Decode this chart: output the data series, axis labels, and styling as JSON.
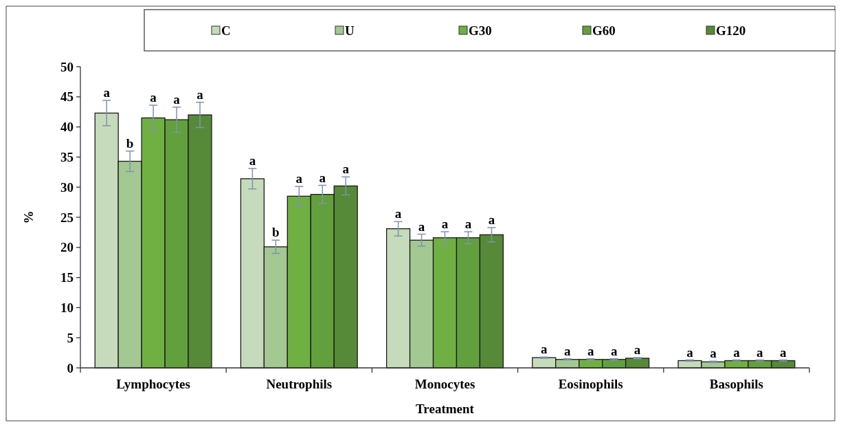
{
  "chart_data": {
    "type": "bar",
    "xlabel": "Treatment",
    "ylabel": "%",
    "categories": [
      "Lymphocytes",
      "Neutrophils",
      "Monocytes",
      "Eosinophils",
      "Basophils"
    ],
    "ylim": [
      0,
      50
    ],
    "yticks": [
      0,
      5,
      10,
      15,
      20,
      25,
      30,
      35,
      40,
      45,
      50
    ],
    "grid": false,
    "legend": "top",
    "series": [
      {
        "name": "C",
        "color": "#c6dbbb",
        "values": [
          42.3,
          31.4,
          23.1,
          1.7,
          1.2
        ],
        "errors": [
          2.1,
          1.7,
          1.2,
          0.1,
          0.1
        ],
        "value_labels": [
          "a",
          "a",
          "a",
          "a",
          "a"
        ]
      },
      {
        "name": "U",
        "color": "#a3c891",
        "values": [
          34.3,
          20.1,
          21.2,
          1.4,
          1.0
        ],
        "errors": [
          1.7,
          1.1,
          1.0,
          0.1,
          0.1
        ],
        "value_labels": [
          "b",
          "b",
          "a",
          "a",
          "a"
        ]
      },
      {
        "name": "G30",
        "color": "#70b043",
        "values": [
          41.5,
          28.5,
          21.6,
          1.4,
          1.2
        ],
        "errors": [
          2.1,
          1.6,
          1.0,
          0.1,
          0.1
        ],
        "value_labels": [
          "a",
          "a",
          "a",
          "a",
          "a"
        ]
      },
      {
        "name": "G60",
        "color": "#62a03e",
        "values": [
          41.2,
          28.8,
          21.6,
          1.4,
          1.2
        ],
        "errors": [
          2.1,
          1.5,
          1.0,
          0.1,
          0.1
        ],
        "value_labels": [
          "a",
          "a",
          "a",
          "a",
          "a"
        ]
      },
      {
        "name": "G120",
        "color": "#568a38",
        "values": [
          42.0,
          30.2,
          22.1,
          1.6,
          1.2
        ],
        "errors": [
          2.1,
          1.5,
          1.2,
          0.1,
          0.1
        ],
        "value_labels": [
          "a",
          "a",
          "a",
          "a",
          "a"
        ]
      }
    ]
  }
}
